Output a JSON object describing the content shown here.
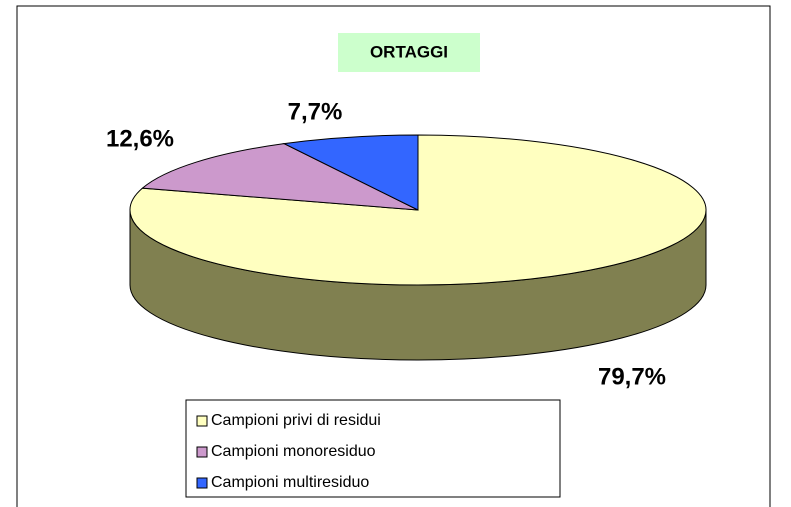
{
  "chart_data": {
    "type": "pie3d",
    "title": "ORTAGGI",
    "categories": [
      "Campioni privi di residui",
      "Campioni monoresiduo",
      "Campioni multiresiduo"
    ],
    "values": [
      79.7,
      12.6,
      7.7
    ],
    "value_labels": [
      "79,7%",
      "12,6%",
      "7,7%"
    ],
    "colors": [
      "#ffffc0",
      "#cc99cc",
      "#3366ff"
    ],
    "side_color": "#808050",
    "legend": "bottom"
  }
}
